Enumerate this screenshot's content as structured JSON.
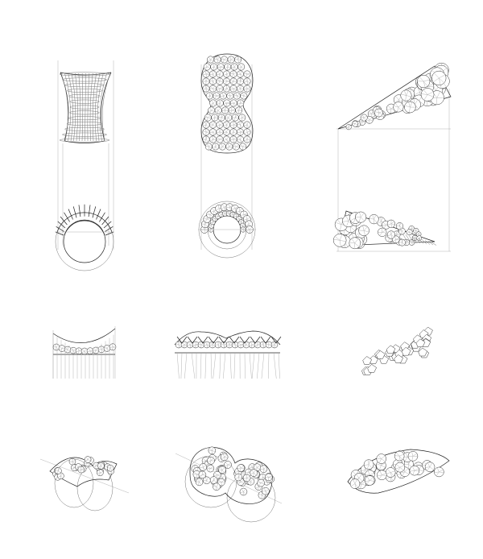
{
  "sheet": {
    "background": "#ffffff",
    "ink": "#222222",
    "construction_ink": "#999999"
  },
  "views": [
    {
      "id": "hyperboloid-tube",
      "row": 1,
      "col": 1,
      "kind": "elevation-and-plan",
      "form": "hyperboloid"
    },
    {
      "id": "peanut-shell",
      "row": 1,
      "col": 2,
      "kind": "elevation-and-plan",
      "form": "double-dome"
    },
    {
      "id": "cantilever-wedge",
      "row": 1,
      "col": 3,
      "kind": "elevation-and-plan",
      "form": "wedge"
    },
    {
      "id": "saddle-strip",
      "row": 2,
      "col": 1,
      "kind": "side-elevation",
      "form": "saddle"
    },
    {
      "id": "double-dome-strip",
      "row": 2,
      "col": 2,
      "kind": "side-elevation",
      "form": "double-dome"
    },
    {
      "id": "wedge-cluster",
      "row": 2,
      "col": 3,
      "kind": "side-elevation",
      "form": "wedge"
    },
    {
      "id": "saddle-axon",
      "row": 3,
      "col": 1,
      "kind": "axonometric",
      "form": "saddle"
    },
    {
      "id": "peanut-axon",
      "row": 3,
      "col": 2,
      "kind": "axonometric",
      "form": "double-dome"
    },
    {
      "id": "wedge-axon",
      "row": 3,
      "col": 3,
      "kind": "axonometric",
      "form": "wedge"
    }
  ]
}
